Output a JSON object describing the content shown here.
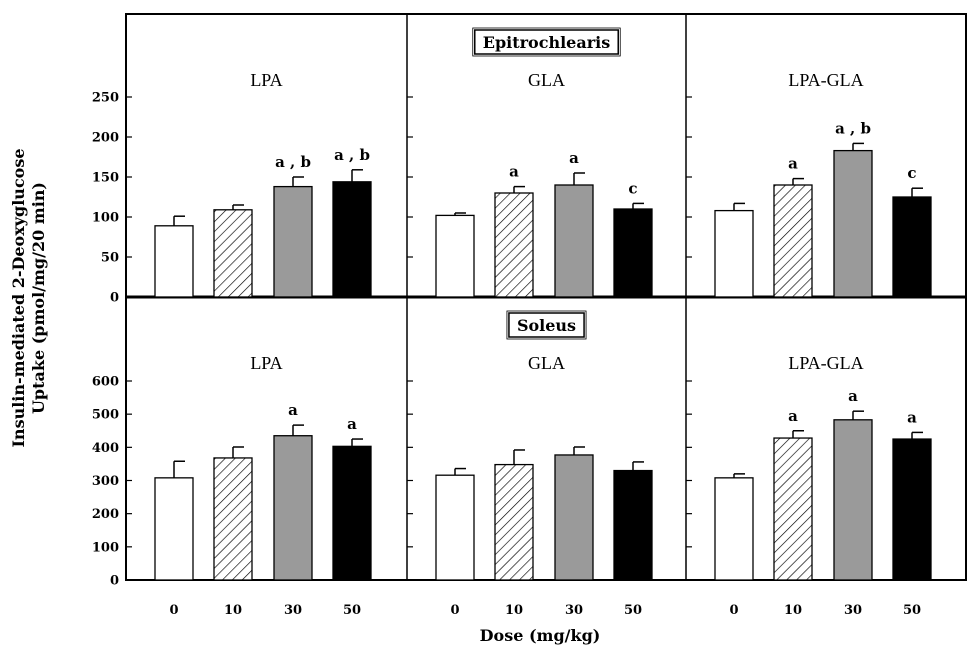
{
  "chart_data": {
    "type": "bar",
    "xlabel": "Dose (mg/kg)",
    "ylabel_lines": [
      "Insulin-mediated 2-Deoxyglucose",
      "Uptake (pmol/mg/20 min)"
    ],
    "categories": [
      "0",
      "10",
      "30",
      "50"
    ],
    "bar_styles": [
      "white",
      "hatched",
      "gray",
      "black"
    ],
    "colors": {
      "gray": "#9a9a9a",
      "black": "#000000",
      "white": "#ffffff"
    },
    "rows": [
      {
        "label": "Epitrochlearis",
        "ylim": [
          0,
          250
        ],
        "yticks": [
          "0",
          "50",
          "100",
          "150",
          "200",
          "250"
        ],
        "panels": [
          {
            "title": "LPA",
            "values": [
              89,
              109,
              138,
              144
            ],
            "errors": [
              12,
              6,
              12,
              15
            ],
            "labels": [
              "",
              "",
              "a , b",
              "a , b"
            ]
          },
          {
            "title": "GLA",
            "values": [
              102,
              130,
              140,
              110
            ],
            "errors": [
              3,
              8,
              15,
              7
            ],
            "labels": [
              "",
              "a",
              "a",
              "c"
            ]
          },
          {
            "title": "LPA-GLA",
            "values": [
              108,
              140,
              183,
              125
            ],
            "errors": [
              9,
              8,
              9,
              11
            ],
            "labels": [
              "",
              "a",
              "a , b",
              "c"
            ]
          }
        ]
      },
      {
        "label": "Soleus",
        "ylim": [
          0,
          600
        ],
        "yticks": [
          "0",
          "100",
          "200",
          "300",
          "400",
          "500",
          "600"
        ],
        "panels": [
          {
            "title": "LPA",
            "values": [
              308,
              368,
              435,
              403
            ],
            "errors": [
              50,
              33,
              32,
              22
            ],
            "labels": [
              "",
              "",
              "a",
              "a"
            ]
          },
          {
            "title": "GLA",
            "values": [
              316,
              348,
              377,
              330
            ],
            "errors": [
              20,
              44,
              24,
              26
            ],
            "labels": [
              "",
              "",
              "",
              ""
            ]
          },
          {
            "title": "LPA-GLA",
            "values": [
              308,
              428,
              483,
              425
            ],
            "errors": [
              12,
              22,
              26,
              20
            ],
            "labels": [
              "",
              "a",
              "a",
              "a"
            ]
          }
        ]
      }
    ]
  }
}
